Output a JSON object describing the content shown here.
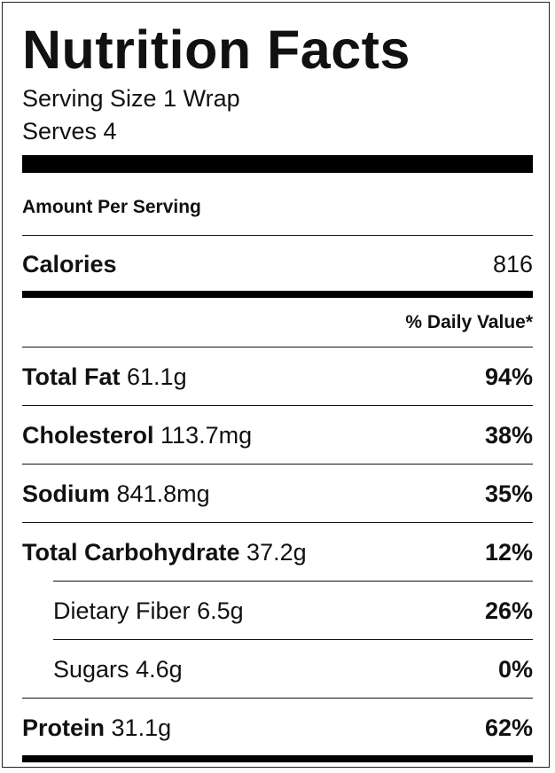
{
  "header": {
    "title": "Nutrition Facts",
    "serving_size": "Serving Size 1 Wrap",
    "serves": "Serves 4"
  },
  "amount_per_serving": "Amount Per Serving",
  "calories": {
    "label": "Calories",
    "value": "816"
  },
  "daily_value_header": "% Daily Value*",
  "nutrients": [
    {
      "name": "Total Fat",
      "amount": "61.1g",
      "percent": "94%"
    },
    {
      "name": "Cholesterol",
      "amount": "113.7mg",
      "percent": "38%"
    },
    {
      "name": "Sodium",
      "amount": "841.8mg",
      "percent": "35%"
    },
    {
      "name": "Total Carbohydrate",
      "amount": "37.2g",
      "percent": "12%"
    },
    {
      "name": "Dietary Fiber",
      "amount": "6.5g",
      "percent": "26%"
    },
    {
      "name": "Sugars",
      "amount": "4.6g",
      "percent": "0%"
    },
    {
      "name": "Protein",
      "amount": "31.1g",
      "percent": "62%"
    }
  ]
}
